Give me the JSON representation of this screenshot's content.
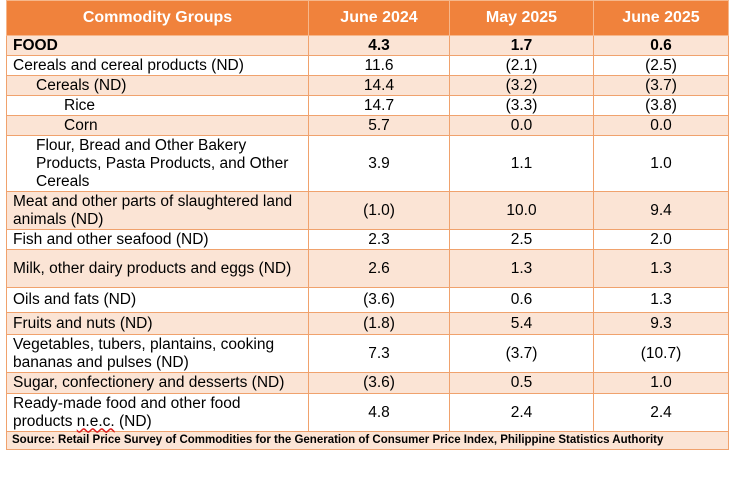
{
  "headers": {
    "group": "Commodity Groups",
    "june_2024": "June 2024",
    "may_2025": "May 2025",
    "june_2025": "June 2025"
  },
  "rows": [
    {
      "label": "FOOD",
      "june_2024": "4.3",
      "may_2025": "1.7",
      "june_2025": "0.6"
    },
    {
      "label": "Cereals and cereal products (ND)",
      "june_2024": "11.6",
      "may_2025": "(2.1)",
      "june_2025": "(2.5)"
    },
    {
      "label": "Cereals (ND)",
      "june_2024": "14.4",
      "may_2025": "(3.2)",
      "june_2025": "(3.7)"
    },
    {
      "label": "Rice",
      "june_2024": "14.7",
      "may_2025": "(3.3)",
      "june_2025": "(3.8)"
    },
    {
      "label": "Corn",
      "june_2024": "5.7",
      "may_2025": "0.0",
      "june_2025": "0.0"
    },
    {
      "label": "Flour, Bread and Other Bakery Products, Pasta Products, and Other Cereals",
      "june_2024": "3.9",
      "may_2025": "1.1",
      "june_2025": "1.0"
    },
    {
      "label": "Meat and other parts of slaughtered land animals (ND)",
      "june_2024": "(1.0)",
      "may_2025": "10.0",
      "june_2025": "9.4"
    },
    {
      "label": "Fish and other seafood (ND)",
      "june_2024": "2.3",
      "may_2025": "2.5",
      "june_2025": "2.0"
    },
    {
      "label": "Milk, other dairy products and eggs (ND)",
      "june_2024": "2.6",
      "may_2025": "1.3",
      "june_2025": "1.3"
    },
    {
      "label": "Oils and fats (ND)",
      "june_2024": "(3.6)",
      "may_2025": "0.6",
      "june_2025": "1.3"
    },
    {
      "label": "Fruits and nuts (ND)",
      "june_2024": "(1.8)",
      "may_2025": "5.4",
      "june_2025": "9.3"
    },
    {
      "label": "Vegetables, tubers, plantains, cooking bananas and pulses (ND)",
      "june_2024": "7.3",
      "may_2025": "(3.7)",
      "june_2025": "(10.7)"
    },
    {
      "label": "Sugar, confectionery and desserts (ND)",
      "june_2024": "(3.6)",
      "may_2025": "0.5",
      "june_2025": "1.0"
    },
    {
      "label_a": "Ready-made food and other food products ",
      "label_b": "n.e.c.",
      "label_c": " (ND)",
      "june_2024": "4.8",
      "may_2025": "2.4",
      "june_2025": "2.4"
    }
  ],
  "source": "Source: Retail Price Survey of Commodities for the Generation of Consumer Price Index, Philippine Statistics Authority",
  "colors": {
    "header_bg": "#f0823c",
    "shade_bg": "#fbe4d5",
    "border": "#f0a26d"
  }
}
